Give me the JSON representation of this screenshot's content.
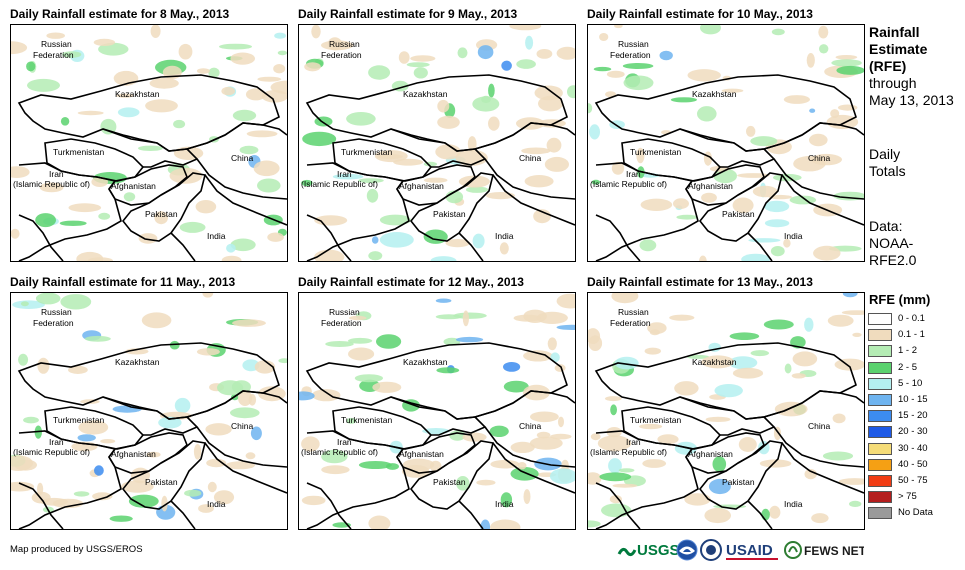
{
  "panels": [
    {
      "title": "Daily Rainfall estimate for 8 May., 2013"
    },
    {
      "title": "Daily Rainfall estimate for 9 May., 2013"
    },
    {
      "title": "Daily Rainfall estimate for 10 May., 2013"
    },
    {
      "title": "Daily Rainfall estimate for 11 May., 2013"
    },
    {
      "title": "Daily Rainfall estimate for 12 May., 2013"
    },
    {
      "title": "Daily Rainfall estimate for 13 May., 2013"
    }
  ],
  "map_labels": {
    "russia_1": "Russian",
    "russia_2": "Federation",
    "kazakhstan": "Kazakhstan",
    "turkmenistan": "Turkmenistan",
    "china": "China",
    "iran_1": "Iran",
    "iran_2": "(Islamic Republic of)",
    "afghanistan": "Afghanistan",
    "pakistan": "Pakistan",
    "india": "India"
  },
  "side": {
    "title_1": "Rainfall",
    "title_2": "Estimate",
    "title_3": "(RFE)",
    "through": "through",
    "date": "May 13, 2013",
    "daily": "Daily",
    "totals": "Totals",
    "data_1": "Data:",
    "data_2": "NOAA-",
    "data_3": "RFE2.0"
  },
  "legend": {
    "title": "RFE (mm)",
    "items": [
      {
        "label": "0 - 0.1",
        "color": "#ffffff"
      },
      {
        "label": "0.1 - 1",
        "color": "#f0dcbe"
      },
      {
        "label": "1 - 2",
        "color": "#b4ecb4"
      },
      {
        "label": "2 - 5",
        "color": "#5ad26e"
      },
      {
        "label": "5 - 10",
        "color": "#b4f0f0"
      },
      {
        "label": "10 - 15",
        "color": "#6eb4f0"
      },
      {
        "label": "15 - 20",
        "color": "#3c8cf0"
      },
      {
        "label": "20 - 30",
        "color": "#1e5ae6"
      },
      {
        "label": "30 - 40",
        "color": "#f5dc78"
      },
      {
        "label": "40 - 50",
        "color": "#f5a014"
      },
      {
        "label": "50 - 75",
        "color": "#f03c14"
      },
      {
        "label": "> 75",
        "color": "#b41e1e"
      },
      {
        "label": "No Data",
        "color": "#9a9a9a"
      }
    ]
  },
  "footer": {
    "credit": "Map produced by USGS/EROS",
    "logos": [
      "USGS",
      "NOAA",
      "USAID",
      "FEWS NET"
    ]
  }
}
